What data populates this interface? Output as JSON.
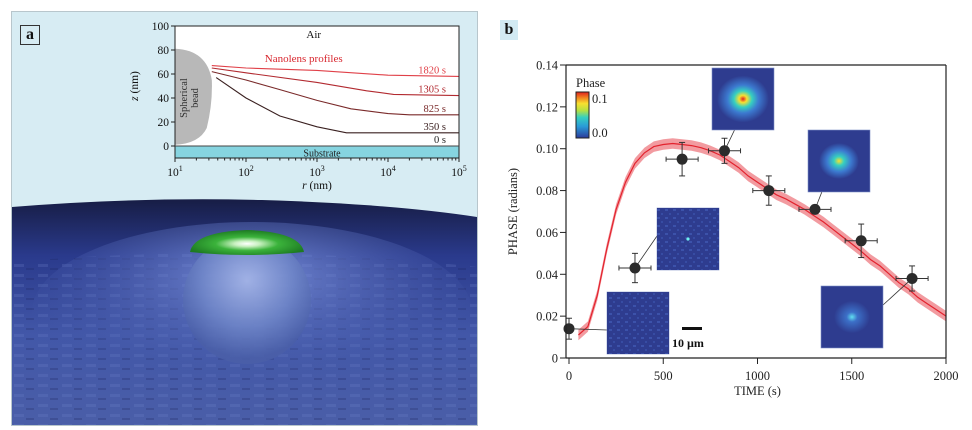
{
  "figure": {
    "panel_a_label": "a",
    "panel_b_label": "b"
  },
  "panel_a": {
    "render_description": "3D rendering of a spherical bead on a substrate with a green nanolens cap",
    "colors": {
      "background": "#d7ecf3",
      "substrate": "#2a3a8c",
      "bead": "#6f86c8",
      "lens": "#3bb33b"
    }
  },
  "chart_data": [
    {
      "type": "line",
      "title": "",
      "xlabel": "r (nm)",
      "ylabel": "z (nm)",
      "xscale": "log",
      "xlim": [
        10,
        100000
      ],
      "ylim": [
        -10,
        100
      ],
      "xticks": [
        10,
        100,
        1000,
        10000,
        100000
      ],
      "xtick_labels": [
        [
          "10",
          "1"
        ],
        [
          "10",
          "2"
        ],
        [
          "10",
          "3"
        ],
        [
          "10",
          "4"
        ],
        [
          "10",
          "5"
        ]
      ],
      "yticks": [
        0,
        20,
        40,
        60,
        80,
        100
      ],
      "ytick_labels": [
        "0",
        "20",
        "40",
        "60",
        "80",
        "100"
      ],
      "grid": false,
      "annotations": {
        "air": "Air",
        "profiles_title": "Nanolens profiles",
        "bead_line1": "Spherical",
        "bead_line2": "bead",
        "substrate": "Substrate"
      },
      "colors": {
        "profiles_title": "#d8262e",
        "substrate": "#86d4e0",
        "bead": "#b8b8b8"
      },
      "series": [
        {
          "name": "0 s",
          "color": "#444444",
          "points": [
            [
              10,
              0
            ],
            [
              100000,
              0
            ]
          ]
        },
        {
          "name": "350 s",
          "color": "#3a2020",
          "points": [
            [
              38,
              57
            ],
            [
              100,
              40
            ],
            [
              300,
              25
            ],
            [
              1000,
              16
            ],
            [
              2600,
              11
            ],
            [
              100000,
              11
            ]
          ]
        },
        {
          "name": "825 s",
          "color": "#7a2a2a",
          "points": [
            [
              33,
              62
            ],
            [
              100,
              55
            ],
            [
              300,
              47
            ],
            [
              1000,
              38
            ],
            [
              3000,
              31
            ],
            [
              10000,
              27
            ],
            [
              20000,
              26
            ],
            [
              100000,
              26
            ]
          ]
        },
        {
          "name": "1305 s",
          "color": "#b22a30",
          "points": [
            [
              33,
              65
            ],
            [
              100,
              61
            ],
            [
              1000,
              53
            ],
            [
              5000,
              46
            ],
            [
              12000,
              43
            ],
            [
              100000,
              42
            ]
          ]
        },
        {
          "name": "1820 s",
          "color": "#e04048",
          "points": [
            [
              33,
              67
            ],
            [
              100,
              65
            ],
            [
              1000,
              63
            ],
            [
              10000,
              59
            ],
            [
              100000,
              58
            ]
          ]
        }
      ]
    },
    {
      "type": "scatter",
      "title": "",
      "xlabel": "TIME (s)",
      "ylabel": "PHASE (radians)",
      "xlim": [
        0,
        2000
      ],
      "ylim": [
        0,
        0.14
      ],
      "xticks": [
        0,
        500,
        1000,
        1500,
        2000
      ],
      "xtick_labels": [
        "0",
        "500",
        "1000",
        "1500",
        "2000"
      ],
      "yticks": [
        0,
        0.02,
        0.04,
        0.06,
        0.08,
        0.1,
        0.12,
        0.14
      ],
      "ytick_labels": [
        "0",
        "0.02",
        "0.04",
        "0.06",
        "0.08",
        "0.10",
        "0.12",
        "0.14"
      ],
      "grid": false,
      "legend": {
        "title": "Phase",
        "max_label": "0.1",
        "min_label": "0.0",
        "placement": "top-left"
      },
      "scale_bar_label": "10 µm",
      "colors": {
        "points": "#2b2b2b",
        "fit_line": "#e3232e",
        "fit_band": "#f08a8f",
        "inset_bg": "#2e3c8f"
      },
      "points": [
        {
          "x": 0,
          "y": 0.014,
          "xerr": 0,
          "yerr": 0.005
        },
        {
          "x": 350,
          "y": 0.043,
          "xerr": 85,
          "yerr": 0.007
        },
        {
          "x": 600,
          "y": 0.095,
          "xerr": 85,
          "yerr": 0.008
        },
        {
          "x": 825,
          "y": 0.099,
          "xerr": 85,
          "yerr": 0.006
        },
        {
          "x": 1060,
          "y": 0.08,
          "xerr": 85,
          "yerr": 0.007
        },
        {
          "x": 1305,
          "y": 0.071,
          "xerr": 85,
          "yerr": 0.002
        },
        {
          "x": 1550,
          "y": 0.056,
          "xerr": 85,
          "yerr": 0.008
        },
        {
          "x": 1820,
          "y": 0.038,
          "xerr": 85,
          "yerr": 0.006
        }
      ],
      "fit_curve": {
        "x": [
          50,
          100,
          150,
          200,
          250,
          300,
          350,
          400,
          450,
          500,
          550,
          600,
          650,
          700,
          750,
          800,
          850,
          900,
          950,
          1000,
          1050,
          1100,
          1150,
          1200,
          1250,
          1300,
          1350,
          1400,
          1450,
          1500,
          1550,
          1600,
          1650,
          1700,
          1750,
          1800,
          1850,
          1900,
          1950,
          2000
        ],
        "y": [
          0.011,
          0.015,
          0.03,
          0.052,
          0.071,
          0.084,
          0.093,
          0.098,
          0.101,
          0.102,
          0.1025,
          0.102,
          0.1015,
          0.1005,
          0.099,
          0.097,
          0.094,
          0.091,
          0.087,
          0.084,
          0.081,
          0.078,
          0.076,
          0.0735,
          0.071,
          0.068,
          0.065,
          0.0615,
          0.058,
          0.0545,
          0.051,
          0.047,
          0.044,
          0.04,
          0.036,
          0.033,
          0.029,
          0.026,
          0.023,
          0.02
        ],
        "band": 0.0025
      },
      "insets": [
        {
          "point_index": 0,
          "intensity": 0.0
        },
        {
          "point_index": 1,
          "intensity": 0.2
        },
        {
          "point_index": 3,
          "intensity": 1.0
        },
        {
          "point_index": 5,
          "intensity": 0.55
        },
        {
          "point_index": 7,
          "intensity": 0.25
        }
      ]
    }
  ]
}
